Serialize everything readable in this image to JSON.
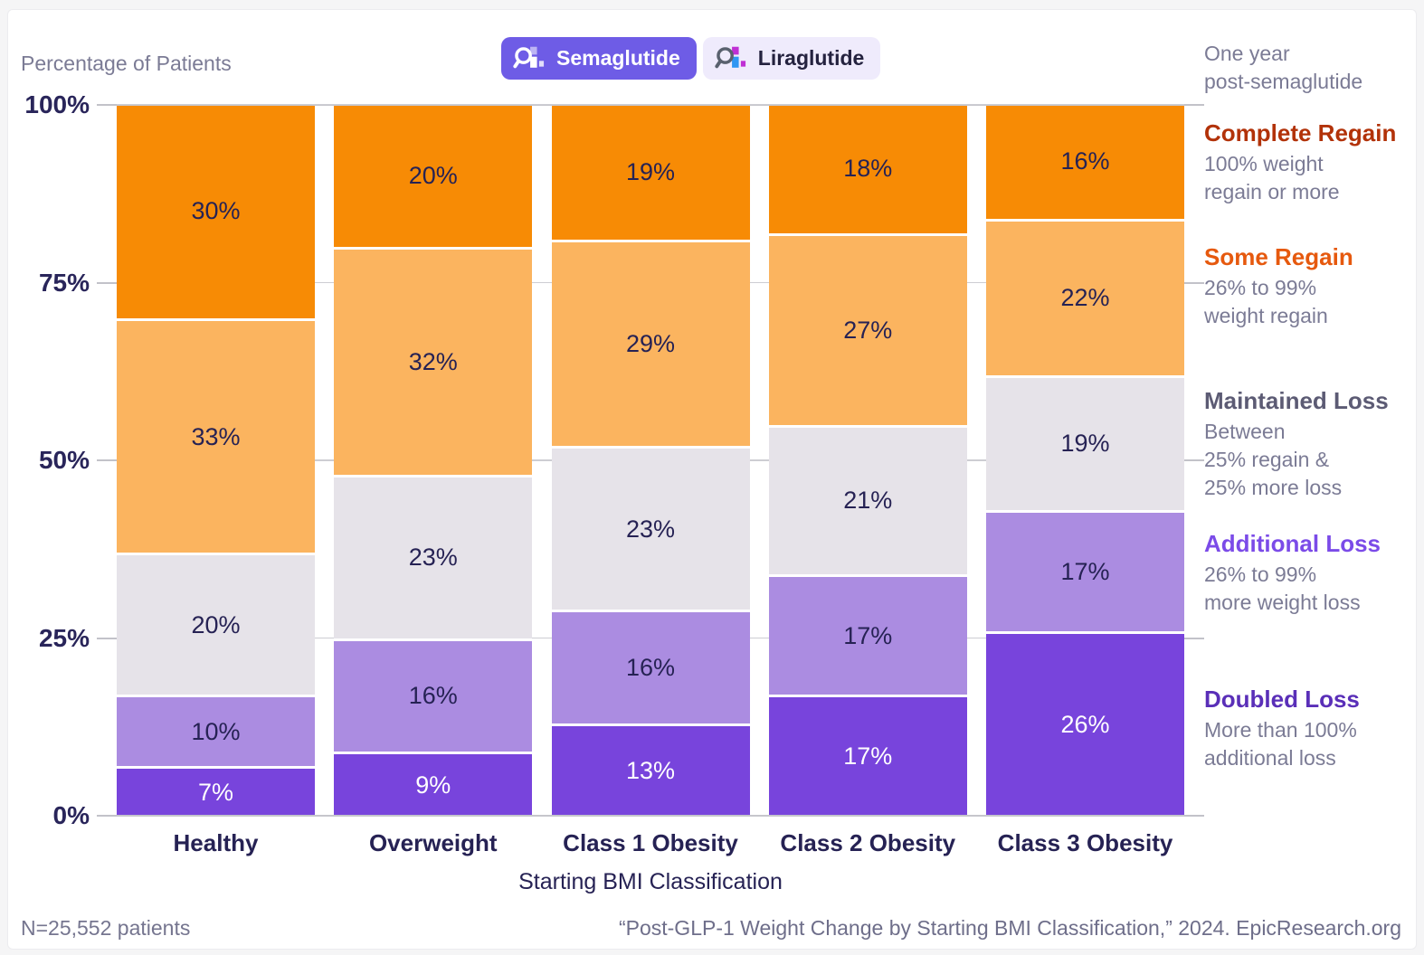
{
  "header": {
    "y_axis_title": "Percentage of Patients",
    "toggle": {
      "selected": "Semaglutide",
      "options": [
        "Semaglutide",
        "Liraglutide"
      ]
    },
    "note": "One year\npost-semaglutide"
  },
  "chart_data": {
    "type": "bar",
    "stacked": true,
    "orientation": "vertical",
    "grid": true,
    "legend_position": "right",
    "xlabel": "Starting BMI Classification",
    "ylabel": "Percentage of Patients",
    "ylim": [
      0,
      100
    ],
    "ytick_values": [
      0,
      25,
      50,
      75,
      100
    ],
    "ytick_labels": [
      "0%",
      "25%",
      "50%",
      "75%",
      "100%"
    ],
    "categories": [
      "Healthy",
      "Overweight",
      "Class 1 Obesity",
      "Class 2 Obesity",
      "Class 3 Obesity"
    ],
    "series_order": "bottom-to-top",
    "series": [
      {
        "name": "Doubled Loss",
        "color": "#7844dc",
        "label_color": "#ffffff",
        "values": [
          7,
          9,
          13,
          17,
          26
        ]
      },
      {
        "name": "Additional Loss",
        "color": "#ab8ce1",
        "label_color": "#262254",
        "values": [
          10,
          16,
          16,
          17,
          17
        ]
      },
      {
        "name": "Maintained Loss",
        "color": "#e6e3e9",
        "label_color": "#262254",
        "values": [
          20,
          23,
          23,
          21,
          19
        ]
      },
      {
        "name": "Some Regain",
        "color": "#fbb45f",
        "label_color": "#262254",
        "values": [
          33,
          32,
          29,
          27,
          22
        ]
      },
      {
        "name": "Complete Regain",
        "color": "#f78b05",
        "label_color": "#262254",
        "values": [
          30,
          20,
          19,
          18,
          16
        ]
      }
    ]
  },
  "legend": {
    "items": [
      {
        "title": "Complete Regain",
        "title_color": "#b23209",
        "desc": "100% weight\nregain or more"
      },
      {
        "title": "Some Regain",
        "title_color": "#e6590e",
        "desc": "26% to 99%\nweight regain"
      },
      {
        "title": "Maintained Loss",
        "title_color": "#5c5b74",
        "desc": "Between\n25% regain &\n25% more loss"
      },
      {
        "title": "Additional Loss",
        "title_color": "#7b4be8",
        "desc": "26% to 99%\nmore weight loss"
      },
      {
        "title": "Doubled Loss",
        "title_color": "#5a2fb8",
        "desc": "More than 100%\nadditional loss"
      }
    ]
  },
  "footer": {
    "left": "N=25,552 patients",
    "right": "“Post-GLP-1 Weight Change by Starting BMI Classification,” 2024. EpicResearch.org"
  }
}
